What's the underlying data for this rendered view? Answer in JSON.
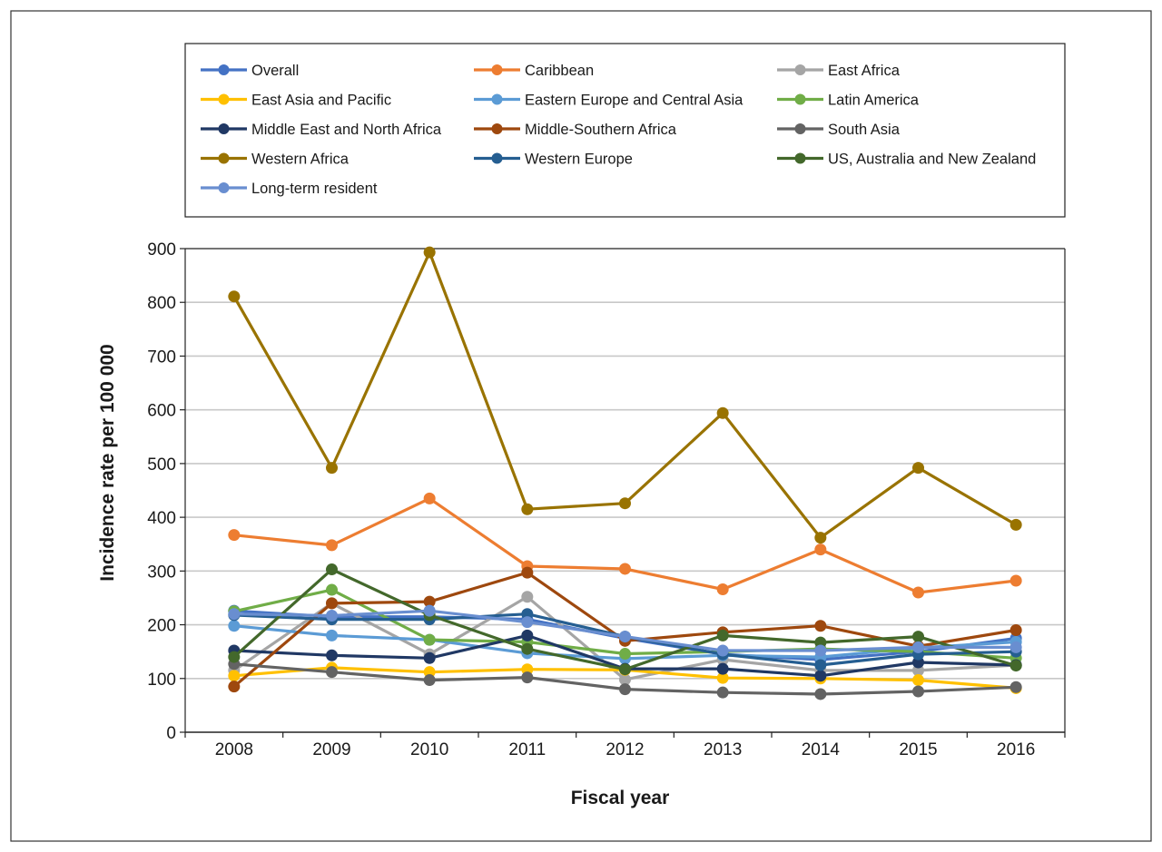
{
  "chart_data": {
    "type": "line",
    "title": "",
    "xlabel": "Fiscal year",
    "ylabel": "Incidence rate per 100 000",
    "x": [
      "2008",
      "2009",
      "2010",
      "2011",
      "2012",
      "2013",
      "2014",
      "2015",
      "2016"
    ],
    "ylim": [
      0,
      900
    ],
    "yticks": [
      0,
      100,
      200,
      300,
      400,
      500,
      600,
      700,
      800,
      900
    ],
    "grid": "horizontal",
    "legend": "top",
    "series": [
      {
        "name": "Overall",
        "color": "#4472c4",
        "values": [
          226,
          215,
          215,
          210,
          175,
          145,
          135,
          150,
          175
        ]
      },
      {
        "name": "Caribbean",
        "color": "#ed7d31",
        "values": [
          367,
          348,
          435,
          309,
          304,
          266,
          340,
          260,
          282
        ]
      },
      {
        "name": "East Africa",
        "color": "#a5a5a5",
        "values": [
          115,
          240,
          145,
          252,
          98,
          135,
          115,
          115,
          125
        ]
      },
      {
        "name": "East Asia and Pacific",
        "color": "#ffc000",
        "values": [
          105,
          120,
          112,
          117,
          116,
          101,
          100,
          97,
          82
        ]
      },
      {
        "name": "Eastern Europe and Central Asia",
        "color": "#5b9bd5",
        "values": [
          198,
          180,
          172,
          147,
          137,
          143,
          140,
          157,
          168
        ]
      },
      {
        "name": "Latin America",
        "color": "#70ad47",
        "values": [
          225,
          265,
          172,
          168,
          146,
          150,
          155,
          150,
          138
        ]
      },
      {
        "name": "Middle East and North Africa",
        "color": "#203864",
        "values": [
          152,
          143,
          138,
          180,
          118,
          118,
          105,
          130,
          125
        ]
      },
      {
        "name": "Middle-Southern Africa",
        "color": "#9e480e",
        "values": [
          85,
          240,
          243,
          297,
          170,
          186,
          198,
          160,
          190
        ]
      },
      {
        "name": "South Asia",
        "color": "#636363",
        "values": [
          127,
          112,
          97,
          102,
          80,
          74,
          71,
          76,
          84
        ]
      },
      {
        "name": "Western Africa",
        "color": "#997300",
        "values": [
          811,
          492,
          893,
          415,
          426,
          594,
          362,
          492,
          386
        ]
      },
      {
        "name": "Western Europe",
        "color": "#255e91",
        "values": [
          218,
          210,
          210,
          220,
          178,
          145,
          125,
          145,
          150
        ]
      },
      {
        "name": "US, Australia and New Zealand",
        "color": "#43682b",
        "values": [
          140,
          303,
          218,
          155,
          117,
          180,
          167,
          178,
          124
        ]
      },
      {
        "name": "Long-term resident",
        "color": "#698ed0",
        "values": [
          220,
          217,
          226,
          205,
          178,
          152,
          152,
          158,
          158
        ]
      }
    ]
  }
}
